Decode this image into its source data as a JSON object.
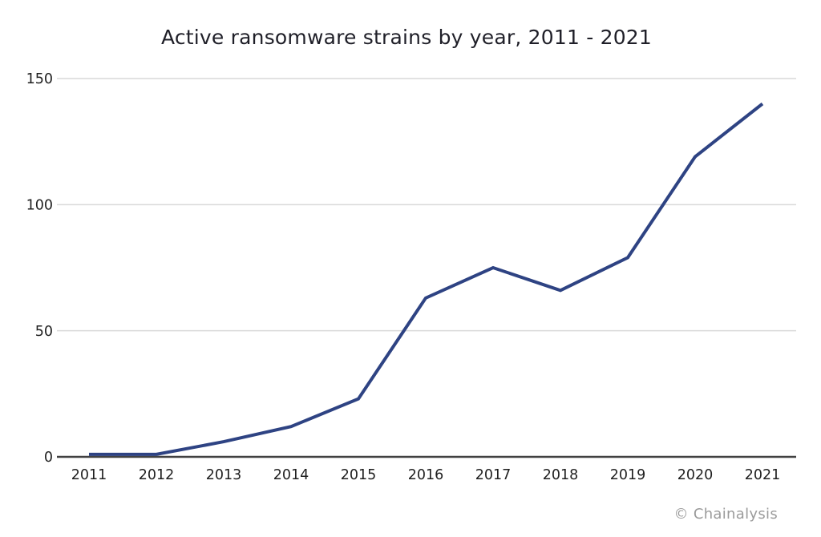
{
  "title": "Active ransomware strains by year, 2011 - 2021",
  "credit": "© Chainalysis",
  "colors": {
    "line": "#2e4383",
    "grid": "#d9d9d9",
    "axis": "#414141",
    "tick_labels": "#1f1f1f",
    "title_text": "#1f1f28",
    "credit_text": "#9b9b9b",
    "background": "#ffffff"
  },
  "chart_data": {
    "type": "line",
    "title": "Active ransomware strains by year, 2011 - 2021",
    "categories": [
      "2011",
      "2012",
      "2013",
      "2014",
      "2015",
      "2016",
      "2017",
      "2018",
      "2019",
      "2020",
      "2021"
    ],
    "values": [
      1,
      1,
      6,
      12,
      23,
      63,
      75,
      66,
      79,
      119,
      140
    ],
    "series_name": "Active ransomware strains",
    "xlabel": "",
    "ylabel": "",
    "ylim": [
      0,
      150
    ],
    "yticks": [
      0,
      50,
      100,
      150
    ],
    "grid": "horizontal",
    "legend": "none",
    "annotation": "© Chainalysis"
  }
}
